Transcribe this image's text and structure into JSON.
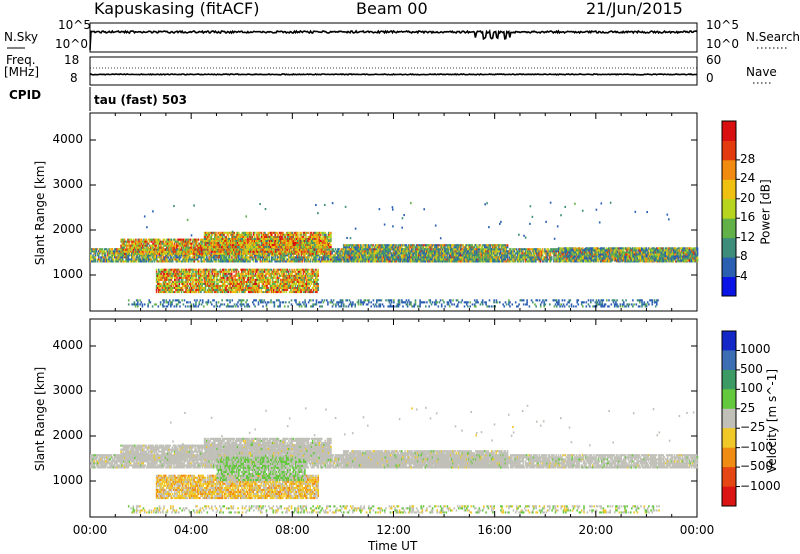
{
  "header": {
    "station": "Kapuskasing (fitACF)",
    "beam": "Beam 00",
    "date": "21/Jun/2015"
  },
  "summary": {
    "nsky_label": "N.Sky",
    "nsky_ticks": [
      "10^5",
      "10^0"
    ],
    "nsearch_label": "N.Search",
    "nsearch_ticks": [
      "10^5",
      "10^0"
    ],
    "freq_label": "Freq.",
    "freq_unit": "[MHz]",
    "freq_ticks": [
      "18",
      "8"
    ],
    "nave_label": "Nave",
    "nave_ticks": [
      "60",
      "0"
    ],
    "cpid_label": "CPID",
    "cpid_value": "tau (fast) 503"
  },
  "chart_data": [
    {
      "type": "heatmap",
      "name": "power-panel",
      "ylabel": "Slant Range [km]",
      "y_ticks": [
        1000,
        2000,
        3000,
        4000
      ],
      "ylim": [
        200,
        4600
      ],
      "xlim_hours": [
        0,
        24
      ],
      "colorbar": {
        "label": "Power [dB]",
        "ticks": [
          "4",
          "8",
          "12",
          "16",
          "20",
          "24",
          "28"
        ],
        "colors": [
          "#0a14e6",
          "#2a5fb2",
          "#3d8d7a",
          "#62b048",
          "#b7d51e",
          "#f0c010",
          "#f08a10",
          "#e43a10",
          "#d80e10"
        ]
      },
      "bands": [
        {
          "t0": 0.0,
          "t1": 24.0,
          "r0": 1280,
          "r1": 1580,
          "level": "mid"
        },
        {
          "t0": 1.2,
          "t1": 9.5,
          "r0": 1450,
          "r1": 1800,
          "level": "high"
        },
        {
          "t0": 4.5,
          "t1": 9.5,
          "r0": 1600,
          "r1": 1950,
          "level": "high"
        },
        {
          "t0": 10.0,
          "t1": 16.5,
          "r0": 1280,
          "r1": 1650,
          "level": "mid"
        },
        {
          "t0": 18.5,
          "t1": 24.0,
          "r0": 1300,
          "r1": 1580,
          "level": "mid"
        },
        {
          "t0": 2.6,
          "t1": 9.0,
          "r0": 600,
          "r1": 1100,
          "level": "high"
        },
        {
          "t0": 1.5,
          "t1": 22.5,
          "r0": 280,
          "r1": 450,
          "level": "low"
        }
      ]
    },
    {
      "type": "heatmap",
      "name": "velocity-panel",
      "ylabel": "Slant Range [km]",
      "xlabel": "Time UT",
      "x_ticks": [
        "00:00",
        "04:00",
        "08:00",
        "12:00",
        "16:00",
        "20:00",
        "00:00"
      ],
      "y_ticks": [
        1000,
        2000,
        3000,
        4000
      ],
      "ylim": [
        200,
        4600
      ],
      "xlim_hours": [
        0,
        24
      ],
      "colorbar": {
        "label": "Velocity [m s^-1]",
        "ticks": [
          "1000",
          "500",
          "100",
          "25",
          "−25",
          "−100",
          "−500",
          "−1000"
        ],
        "colors": [
          "#1428c8",
          "#3c6eb4",
          "#3c9a64",
          "#64c83c",
          "#c0c0b8",
          "#f0c828",
          "#f08c14",
          "#e64614",
          "#dc1414"
        ]
      },
      "bands": [
        {
          "t0": 0.0,
          "t1": 24.0,
          "r0": 1280,
          "r1": 1580,
          "level": "gray"
        },
        {
          "t0": 1.2,
          "t1": 9.5,
          "r0": 1450,
          "r1": 1800,
          "level": "gray"
        },
        {
          "t0": 4.5,
          "t1": 9.5,
          "r0": 1600,
          "r1": 1950,
          "level": "gray"
        },
        {
          "t0": 10.0,
          "t1": 16.5,
          "r0": 1280,
          "r1": 1650,
          "level": "gray"
        },
        {
          "t0": 2.6,
          "t1": 9.0,
          "r0": 600,
          "r1": 1100,
          "level": "warm"
        },
        {
          "t0": 5.0,
          "t1": 8.5,
          "r0": 1000,
          "r1": 1500,
          "level": "green"
        },
        {
          "t0": 1.5,
          "t1": 22.5,
          "r0": 280,
          "r1": 450,
          "level": "faint"
        }
      ]
    }
  ]
}
